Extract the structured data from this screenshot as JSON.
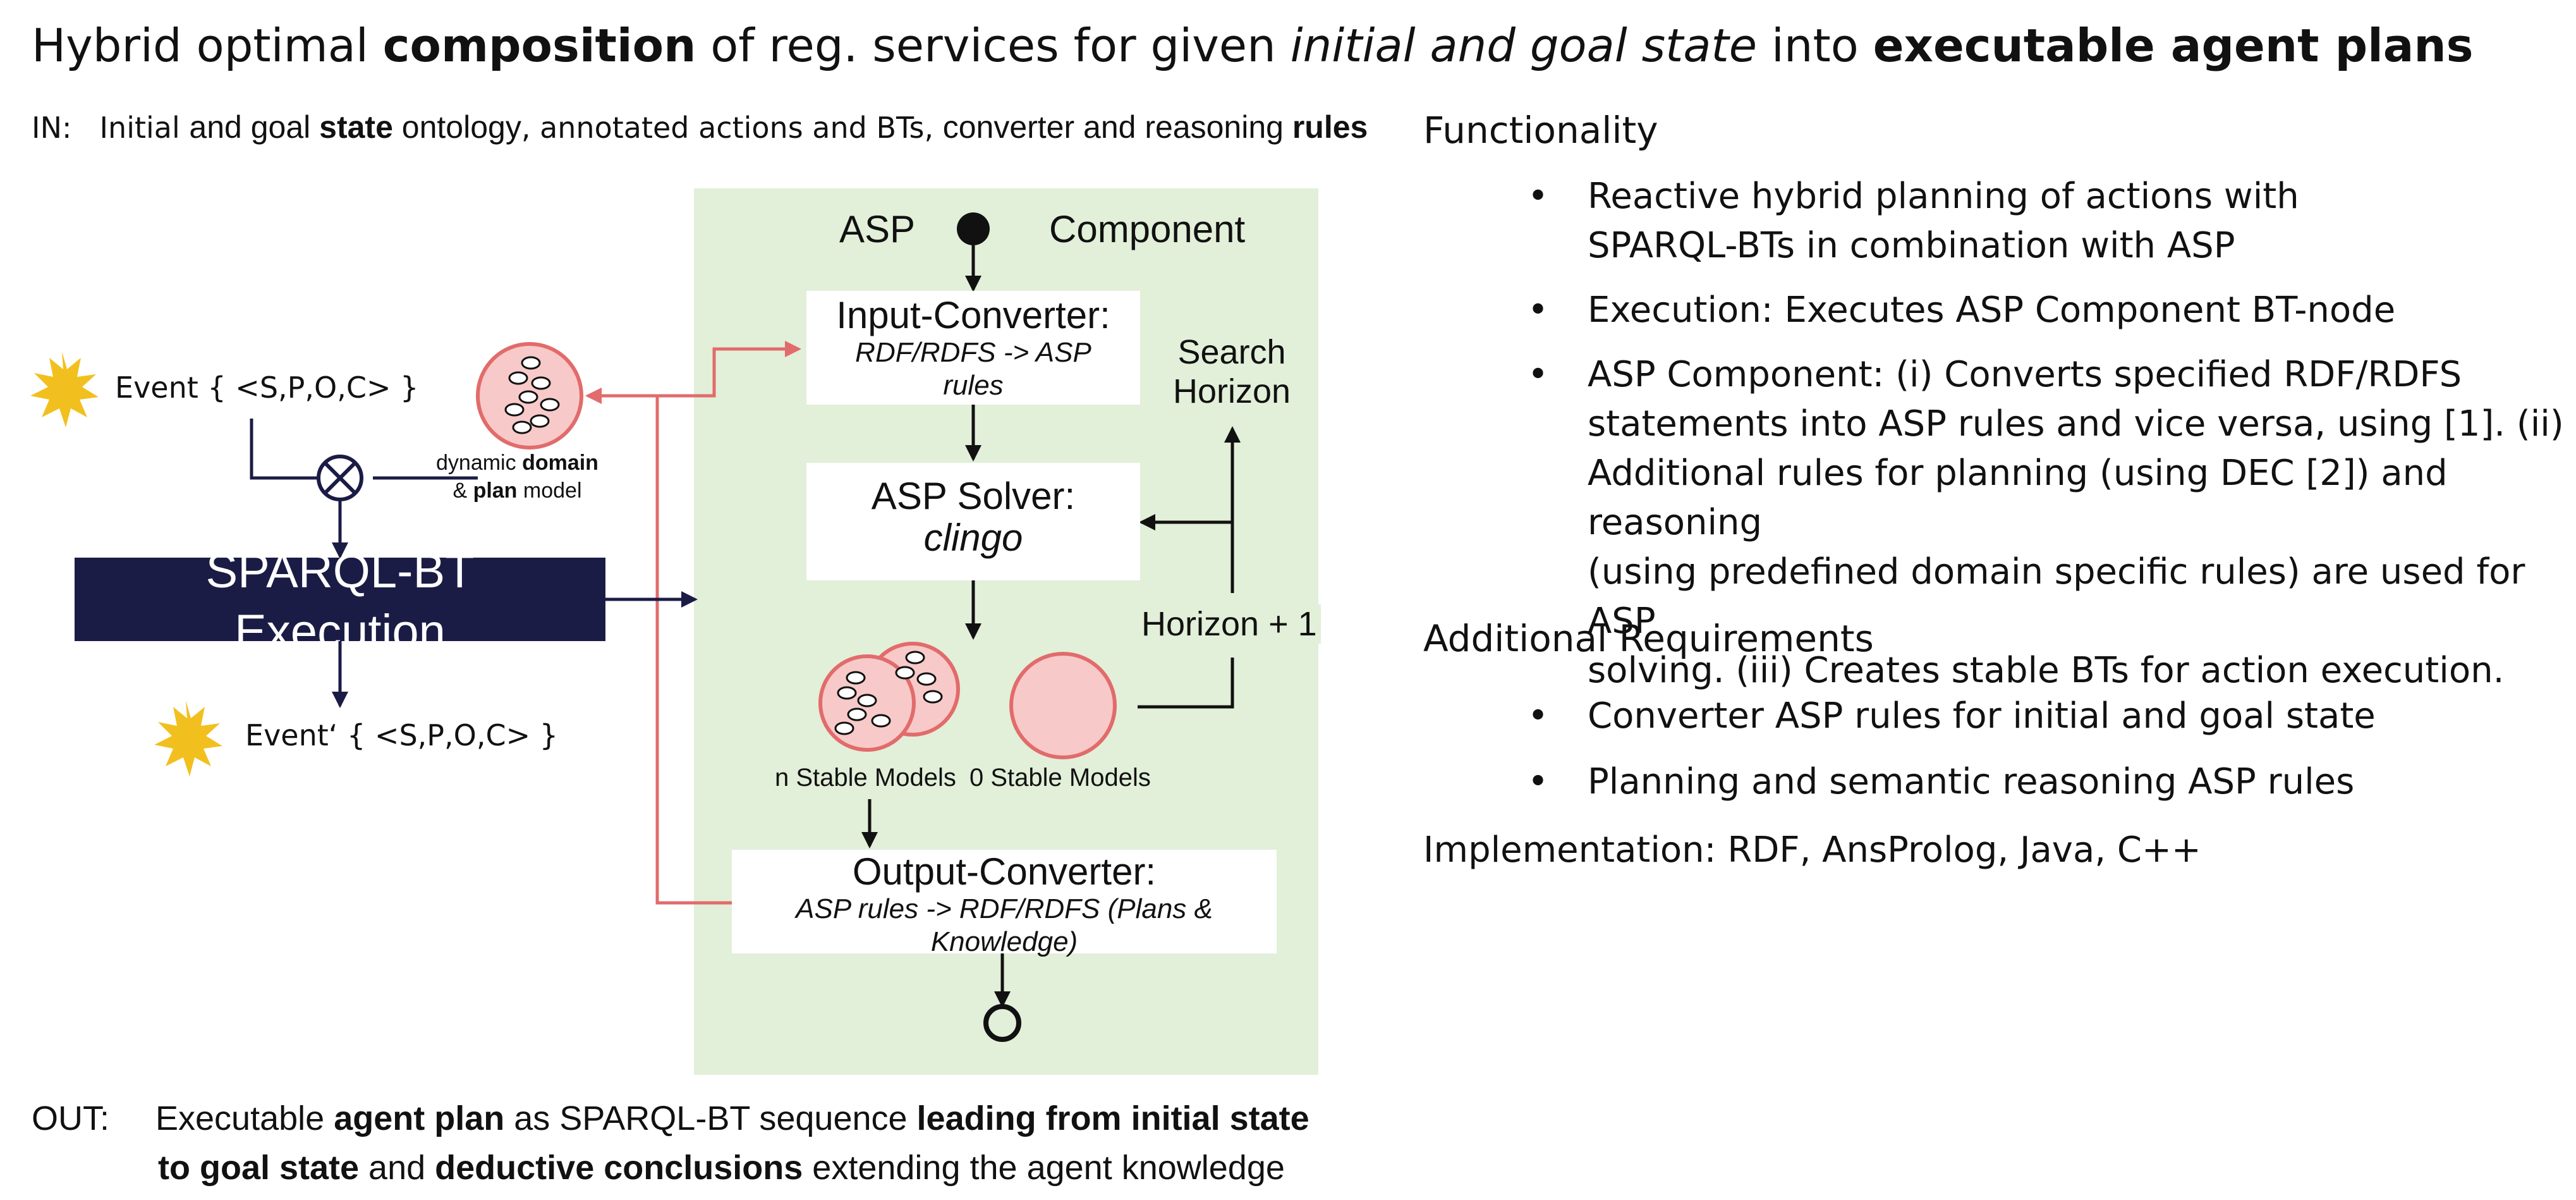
{
  "title": {
    "p1": "Hybrid optimal ",
    "p2": "composition",
    "p3": " of reg. services for given ",
    "p4": "initial and goal state",
    "p5": " into ",
    "p6": "executable agent plans"
  },
  "input": {
    "label": "IN:",
    "p1": "Initial ",
    "p2": "and goal ",
    "p3": "state",
    "p4": " ontology",
    "p5": ", annotated actions and BTs, ",
    "p6": "converter and reasoning ",
    "p7": "rules"
  },
  "functionality": {
    "title": "Functionality",
    "bullets": [
      [
        "Reactive hybrid planning of actions with",
        "SPARQL-BTs in combination with ASP"
      ],
      [
        "Execution: Executes ASP Component BT-node"
      ],
      [
        "ASP Component: (i) Converts specified RDF/RDFS",
        "statements into ASP rules and vice versa, using [1]. (ii)",
        "Additional rules for planning (using DEC [2]) and reasoning",
        "(using predefined domain specific rules) are used for ASP",
        "solving. (iii) Creates stable BTs for action execution."
      ]
    ]
  },
  "additional": {
    "title": "Additional Requirements",
    "bullets": [
      "Converter ASP rules for initial and goal state",
      "Planning and semantic reasoning ASP rules"
    ]
  },
  "implementation": {
    "label": "Implementation",
    "value": ": RDF, AnsProlog, Java, C++"
  },
  "bullet_glyph": "•",
  "diagram": {
    "asp": "ASP",
    "component": "Component",
    "input_converter": {
      "title": "Input-Converter:",
      "sub1": "RDF/RDFS -> ASP",
      "sub2": "rules"
    },
    "search_horizon": {
      "l1": "Search",
      "l2": "Horizon"
    },
    "asp_solver": {
      "title": "ASP Solver:",
      "sub": "clingo"
    },
    "horizon_plus": "Horizon + 1",
    "n_stable": "n Stable Models",
    "zero_stable": "0 Stable Models",
    "output_converter": {
      "title": "Output-Converter:",
      "sub1": "ASP rules -> RDF/RDFS (Plans &",
      "sub2": "Knowledge)"
    },
    "event": "Event { <S,P,O,C> }",
    "event_prime": "Event‘ { <S,P,O,C> }",
    "dynamic": {
      "p1": "dynamic ",
      "p2": "domain",
      "p3": "& ",
      "p4": "plan",
      "p5": "  model"
    },
    "sparql": {
      "l1": "SPARQL-BT",
      "l2": "Execution"
    }
  },
  "output": {
    "label": "OUT:",
    "l1a": "Executable ",
    "l1b": "agent plan",
    "l1c": " as SPARQL-BT sequence  ",
    "l1d": "leading from initial state",
    "l2a": "to goal state",
    "l2b": " and ",
    "l2c": "deductive conclusions",
    "l2d": " extending the agent knowledge"
  },
  "colors": {
    "panel": "#e2efd9",
    "navy": "#1b1c45",
    "salmon": "#e26b6b",
    "pink": "#f8c9c9",
    "star": "#f2c01e"
  }
}
